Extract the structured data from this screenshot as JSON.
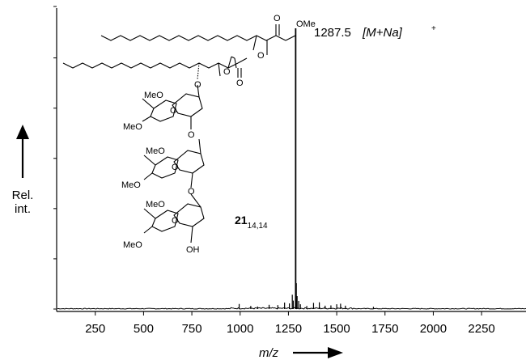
{
  "chart_data": {
    "type": "line",
    "title": "",
    "xlabel": "m/z",
    "ylabel": "Rel. int.",
    "ylabel_lines": [
      "Rel.",
      "int."
    ],
    "xlim": [
      50,
      2480
    ],
    "ylim": [
      0,
      100
    ],
    "x_ticks": [
      250,
      500,
      750,
      1000,
      1250,
      1500,
      1750,
      2000,
      2250
    ],
    "y_ticks": [
      0,
      16.6,
      33.2,
      49.8,
      66.4,
      83,
      100
    ],
    "grid": false,
    "legend": "none",
    "series": [
      {
        "peaks": [
          {
            "x": 995,
            "y": 1.8
          },
          {
            "x": 1055,
            "y": 1.1
          },
          {
            "x": 1090,
            "y": 0.9
          },
          {
            "x": 1150,
            "y": 1.5
          },
          {
            "x": 1195,
            "y": 1.4
          },
          {
            "x": 1230,
            "y": 2.3
          },
          {
            "x": 1255,
            "y": 2.0
          },
          {
            "x": 1270,
            "y": 5.1
          },
          {
            "x": 1275,
            "y": 3.0
          },
          {
            "x": 1287.5,
            "y": 100
          },
          {
            "x": 1291,
            "y": 9.2
          },
          {
            "x": 1295,
            "y": 4.6
          },
          {
            "x": 1303,
            "y": 2.9
          },
          {
            "x": 1312,
            "y": 1.7
          },
          {
            "x": 1345,
            "y": 1.1
          },
          {
            "x": 1380,
            "y": 2.2
          },
          {
            "x": 1410,
            "y": 2.4
          },
          {
            "x": 1440,
            "y": 1.2
          },
          {
            "x": 1470,
            "y": 1.3
          },
          {
            "x": 1500,
            "y": 1.7
          },
          {
            "x": 1520,
            "y": 1.9
          },
          {
            "x": 1545,
            "y": 1.2
          },
          {
            "x": 1690,
            "y": 0.8
          }
        ]
      }
    ],
    "annotations": [
      {
        "x": 1287.5,
        "text": "1287.5",
        "ion_label": "[M+Na]",
        "charge": "+"
      }
    ],
    "colors": {
      "line": "#000000",
      "axis": "#000000"
    }
  },
  "molecule": {
    "compound_number": "21",
    "compound_subscript": "14,14",
    "labels": {
      "ome": "OMe",
      "o": "O",
      "meo": "MeO",
      "oh": "OH"
    }
  }
}
